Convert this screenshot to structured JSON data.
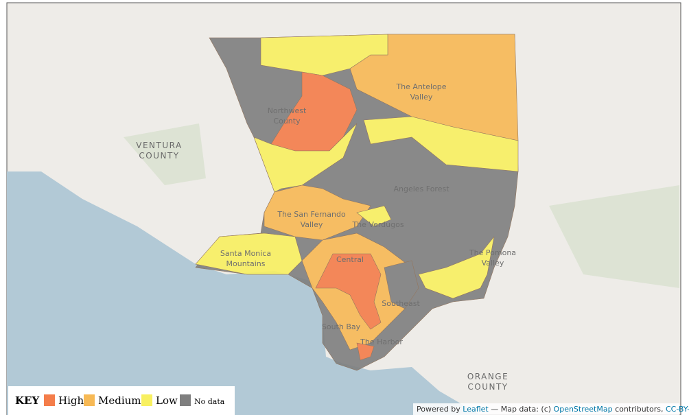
{
  "map": {
    "labels": [
      {
        "lines": [
          "VENTURA",
          "COUNTY"
        ]
      },
      {
        "lines": [
          "Northwest",
          "County"
        ]
      },
      {
        "lines": [
          "The Antelope",
          "Valley"
        ]
      },
      {
        "lines": [
          "Angeles Forest"
        ]
      },
      {
        "lines": [
          "The San Fernando",
          "Valley"
        ]
      },
      {
        "lines": [
          "The Verdugos"
        ]
      },
      {
        "lines": [
          "Santa Monica",
          "Mountains"
        ]
      },
      {
        "lines": [
          "Central"
        ]
      },
      {
        "lines": [
          "Southeast"
        ]
      },
      {
        "lines": [
          "South Bay"
        ]
      },
      {
        "lines": [
          "The Harbor"
        ]
      },
      {
        "lines": [
          "The Pomona",
          "Valley"
        ]
      },
      {
        "lines": [
          "ORANGE",
          "COUNTY"
        ]
      }
    ]
  },
  "legend": {
    "title": "KEY",
    "items": [
      {
        "label": "High",
        "color": "#f47d4a"
      },
      {
        "label": "Medium",
        "color": "#f7b955"
      },
      {
        "label": "Low",
        "color": "#f8f060"
      },
      {
        "label": "No data",
        "color": "#7f7f7f"
      }
    ]
  },
  "attribution": {
    "prefix": "Powered by",
    "leaflet": "Leaflet",
    "middle": "— Map data: (c)",
    "osm": "OpenStreetMap",
    "contributors": "contributors,",
    "license": "CC-BY-SA."
  }
}
